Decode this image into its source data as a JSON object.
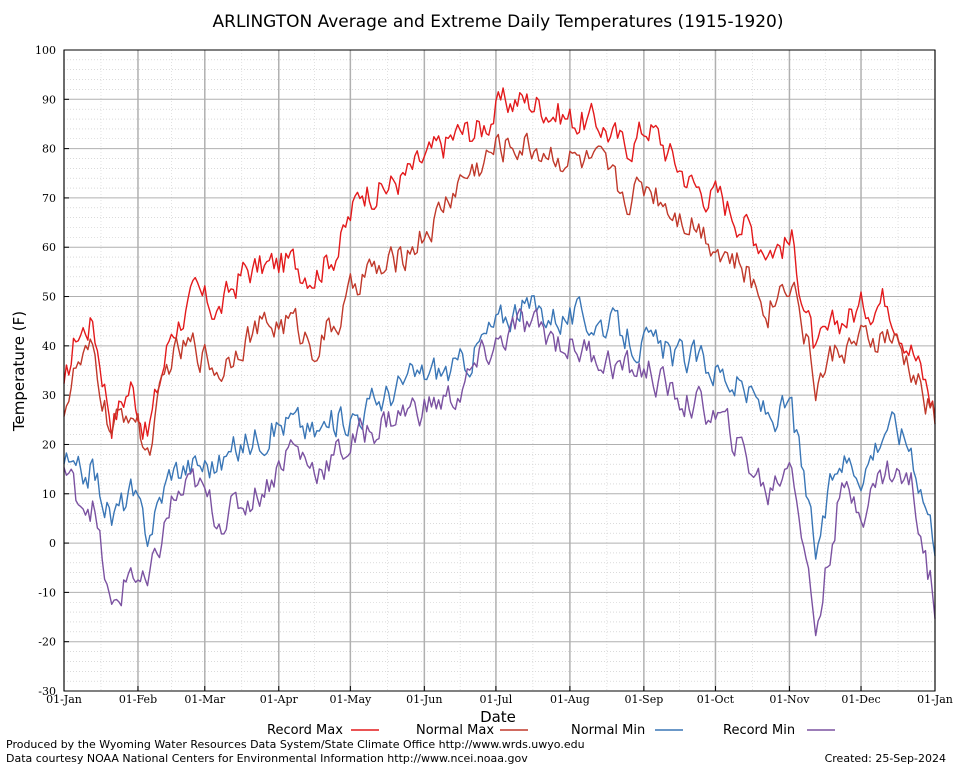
{
  "chart_data": {
    "type": "line",
    "title": "ARLINGTON Average and Extreme Daily Temperatures (1915-1920)",
    "xlabel": "Date",
    "ylabel": "Temperature (F)",
    "ylim": [
      -30,
      100
    ],
    "y_ticks": [
      100,
      90,
      80,
      70,
      60,
      50,
      40,
      30,
      20,
      10,
      0,
      -10,
      -20,
      -30
    ],
    "x_ticks": [
      "01-Jan",
      "01-Feb",
      "01-Mar",
      "01-Apr",
      "01-May",
      "01-Jun",
      "01-Jul",
      "01-Aug",
      "01-Sep",
      "01-Oct",
      "01-Nov",
      "01-Dec",
      "01-Jan"
    ],
    "x_tick_days": [
      0,
      31,
      59,
      90,
      120,
      151,
      181,
      212,
      243,
      273,
      304,
      334,
      365
    ],
    "grid": true,
    "legend_position": "bottom",
    "x_keypoints_day": [
      0,
      5,
      12,
      20,
      28,
      35,
      45,
      55,
      65,
      75,
      85,
      95,
      105,
      115,
      125,
      135,
      145,
      155,
      165,
      175,
      181,
      190,
      200,
      212,
      225,
      235,
      245,
      255,
      265,
      275,
      285,
      295,
      305,
      315,
      325,
      335,
      345,
      355,
      365
    ],
    "series": [
      {
        "name": "Record Max",
        "color": "#e31a1c",
        "values": [
          30,
          42,
          45,
          25,
          32,
          22,
          43,
          50,
          47,
          55,
          56,
          57,
          55,
          60,
          72,
          72,
          75,
          79,
          83,
          84,
          88,
          90,
          89,
          86,
          85,
          80,
          85,
          78,
          72,
          70,
          65,
          60,
          61,
          38,
          45,
          48,
          50,
          40,
          27
        ]
      },
      {
        "name": "Normal Max",
        "color": "#c0392b",
        "values": [
          28,
          35,
          38,
          22,
          28,
          18,
          38,
          40,
          35,
          42,
          44,
          45,
          40,
          45,
          55,
          55,
          60,
          65,
          73,
          77,
          80,
          81,
          80,
          78,
          76,
          70,
          73,
          68,
          65,
          60,
          55,
          48,
          55,
          32,
          40,
          40,
          42,
          35,
          25
        ]
      },
      {
        "name": "Normal Min",
        "color": "#3a76b6",
        "values": [
          17,
          13,
          15,
          5,
          10,
          2,
          15,
          16,
          16,
          20,
          23,
          25,
          22,
          25,
          27,
          30,
          33,
          35,
          35,
          41,
          44,
          48,
          47,
          46,
          45,
          42,
          40,
          38,
          37,
          35,
          31,
          26,
          27,
          -2,
          18,
          15,
          25,
          20,
          1
        ]
      },
      {
        "name": "Record Min",
        "color": "#7b52a1",
        "values": [
          15,
          10,
          8,
          -15,
          -5,
          -10,
          8,
          12,
          5,
          8,
          12,
          20,
          15,
          18,
          22,
          25,
          27,
          28,
          30,
          37,
          40,
          44,
          43,
          40,
          38,
          35,
          35,
          30,
          28,
          25,
          18,
          10,
          18,
          -18,
          10,
          8,
          15,
          12,
          -12
        ]
      }
    ]
  },
  "footer": {
    "left_line1": "Produced by the Wyoming Water Resources Data System/State Climate Office http://www.wrds.uwyo.edu",
    "left_line2": "Data courtesy NOAA National Centers for Environmental Information http://www.ncei.noaa.gov",
    "created": "Created:  25-Sep-2024"
  }
}
